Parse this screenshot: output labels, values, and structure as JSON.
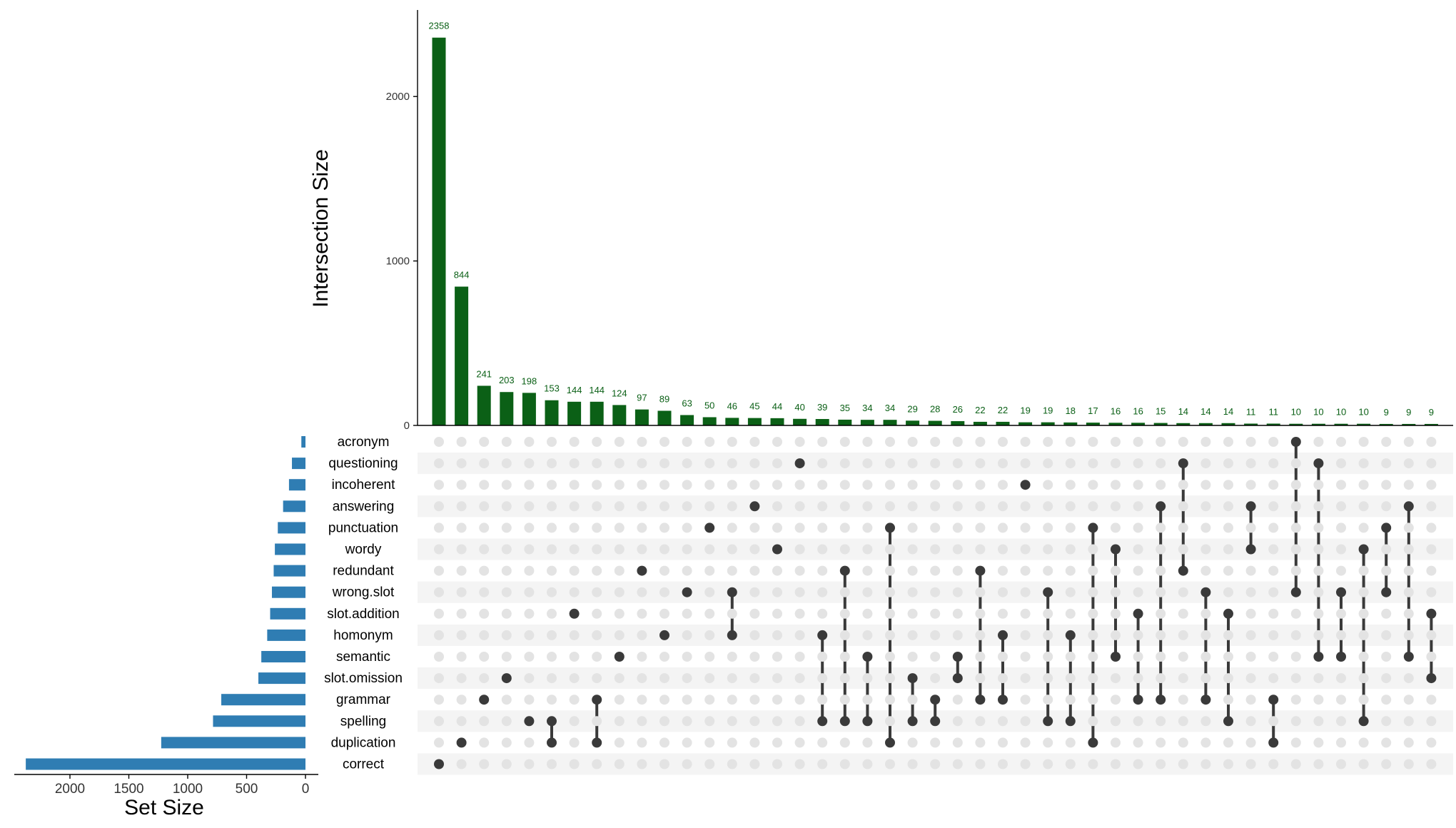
{
  "chart_data": {
    "type": "upset",
    "colors": {
      "bars": "#0b6016",
      "set_bars": "#2f7db3",
      "dot_active": "#3a3a3a",
      "dot_inactive": "#e3e3e3",
      "stripe": "#f4f4f4",
      "label": "#0b6016"
    },
    "intersection_axis": {
      "label": "Intersection Size",
      "ylim": [
        0,
        2500
      ],
      "ticks": [
        0,
        1000,
        2000
      ]
    },
    "setsize_axis": {
      "label": "Set Size",
      "xlim": [
        2400,
        0
      ],
      "ticks": [
        2000,
        1500,
        1000,
        500,
        0
      ]
    },
    "sets": [
      {
        "name": "acronym",
        "size": 35
      },
      {
        "name": "questioning",
        "size": 115
      },
      {
        "name": "incoherent",
        "size": 140
      },
      {
        "name": "answering",
        "size": 190
      },
      {
        "name": "punctuation",
        "size": 235
      },
      {
        "name": "wordy",
        "size": 260
      },
      {
        "name": "redundant",
        "size": 270
      },
      {
        "name": "wrong.slot",
        "size": 285
      },
      {
        "name": "slot.addition",
        "size": 300
      },
      {
        "name": "homonym",
        "size": 325
      },
      {
        "name": "semantic",
        "size": 375
      },
      {
        "name": "slot.omission",
        "size": 400
      },
      {
        "name": "grammar",
        "size": 715
      },
      {
        "name": "spelling",
        "size": 785
      },
      {
        "name": "duplication",
        "size": 1225
      },
      {
        "name": "correct",
        "size": 2375
      }
    ],
    "intersections": [
      {
        "size": 2358,
        "sets": [
          "correct"
        ]
      },
      {
        "size": 844,
        "sets": [
          "duplication"
        ]
      },
      {
        "size": 241,
        "sets": [
          "grammar"
        ]
      },
      {
        "size": 203,
        "sets": [
          "slot.omission"
        ]
      },
      {
        "size": 198,
        "sets": [
          "spelling"
        ]
      },
      {
        "size": 153,
        "sets": [
          "spelling",
          "duplication"
        ]
      },
      {
        "size": 144,
        "sets": [
          "slot.addition"
        ]
      },
      {
        "size": 144,
        "sets": [
          "grammar",
          "duplication"
        ]
      },
      {
        "size": 124,
        "sets": [
          "semantic"
        ]
      },
      {
        "size": 97,
        "sets": [
          "redundant"
        ]
      },
      {
        "size": 89,
        "sets": [
          "homonym"
        ]
      },
      {
        "size": 63,
        "sets": [
          "wrong.slot"
        ]
      },
      {
        "size": 50,
        "sets": [
          "punctuation"
        ]
      },
      {
        "size": 46,
        "sets": [
          "wrong.slot",
          "homonym"
        ]
      },
      {
        "size": 45,
        "sets": [
          "answering"
        ]
      },
      {
        "size": 44,
        "sets": [
          "wordy"
        ]
      },
      {
        "size": 40,
        "sets": [
          "questioning"
        ]
      },
      {
        "size": 39,
        "sets": [
          "homonym",
          "spelling"
        ]
      },
      {
        "size": 35,
        "sets": [
          "redundant",
          "spelling"
        ]
      },
      {
        "size": 34,
        "sets": [
          "semantic",
          "spelling"
        ]
      },
      {
        "size": 34,
        "sets": [
          "punctuation",
          "duplication"
        ]
      },
      {
        "size": 29,
        "sets": [
          "slot.omission",
          "spelling"
        ]
      },
      {
        "size": 28,
        "sets": [
          "grammar",
          "spelling"
        ]
      },
      {
        "size": 26,
        "sets": [
          "semantic",
          "slot.omission"
        ]
      },
      {
        "size": 22,
        "sets": [
          "redundant",
          "grammar"
        ]
      },
      {
        "size": 22,
        "sets": [
          "homonym",
          "grammar"
        ]
      },
      {
        "size": 19,
        "sets": [
          "incoherent"
        ]
      },
      {
        "size": 19,
        "sets": [
          "wrong.slot",
          "spelling"
        ]
      },
      {
        "size": 18,
        "sets": [
          "homonym",
          "spelling"
        ]
      },
      {
        "size": 17,
        "sets": [
          "punctuation",
          "duplication"
        ]
      },
      {
        "size": 16,
        "sets": [
          "wordy",
          "semantic"
        ]
      },
      {
        "size": 16,
        "sets": [
          "slot.addition",
          "grammar"
        ]
      },
      {
        "size": 15,
        "sets": [
          "answering",
          "grammar"
        ]
      },
      {
        "size": 14,
        "sets": [
          "questioning",
          "redundant"
        ]
      },
      {
        "size": 14,
        "sets": [
          "wrong.slot",
          "grammar"
        ]
      },
      {
        "size": 14,
        "sets": [
          "slot.addition",
          "spelling"
        ]
      },
      {
        "size": 11,
        "sets": [
          "answering",
          "wordy"
        ]
      },
      {
        "size": 11,
        "sets": [
          "grammar",
          "duplication"
        ]
      },
      {
        "size": 10,
        "sets": [
          "acronym",
          "wrong.slot"
        ]
      },
      {
        "size": 10,
        "sets": [
          "questioning",
          "semantic"
        ]
      },
      {
        "size": 10,
        "sets": [
          "wrong.slot",
          "semantic"
        ]
      },
      {
        "size": 10,
        "sets": [
          "wordy",
          "spelling"
        ]
      },
      {
        "size": 9,
        "sets": [
          "punctuation",
          "wrong.slot"
        ]
      },
      {
        "size": 9,
        "sets": [
          "answering",
          "semantic"
        ]
      },
      {
        "size": 9,
        "sets": [
          "slot.addition",
          "slot.omission"
        ]
      }
    ]
  }
}
